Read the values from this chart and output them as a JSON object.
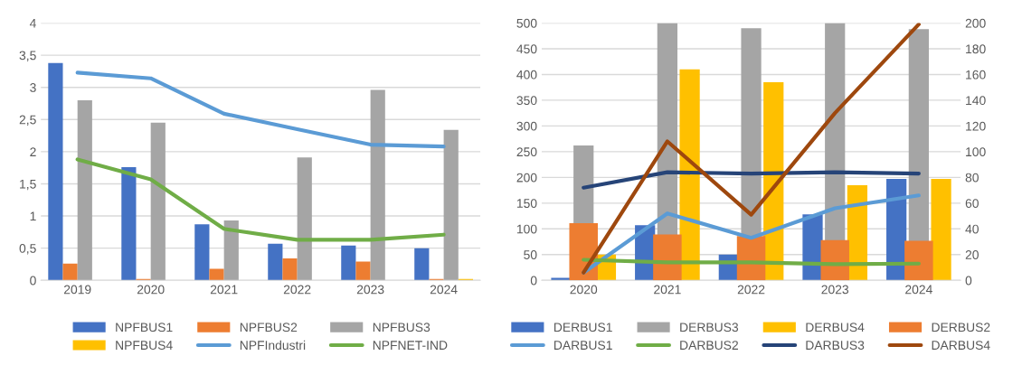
{
  "chart_data": [
    {
      "type": "bar",
      "categories": [
        "2019",
        "2020",
        "2021",
        "2022",
        "2023",
        "2024"
      ],
      "series": [
        {
          "name": "NPFBUS1",
          "color": "#4472c4",
          "values": [
            3.38,
            1.76,
            0.87,
            0.57,
            0.54,
            0.5
          ]
        },
        {
          "name": "NPFBUS2",
          "color": "#ed7d31",
          "values": [
            0.26,
            0.02,
            0.18,
            0.34,
            0.29,
            0.02
          ]
        },
        {
          "name": "NPFBUS3",
          "color": "#a5a5a5",
          "values": [
            2.8,
            2.45,
            0.93,
            1.91,
            2.96,
            2.34
          ]
        },
        {
          "name": "NPFBUS4",
          "color": "#ffc000",
          "values": [
            null,
            null,
            null,
            null,
            null,
            0.02
          ]
        },
        {
          "name": "NPFIndustri",
          "type": "line",
          "color": "#5b9bd5",
          "values": [
            3.23,
            3.14,
            2.59,
            2.35,
            2.11,
            2.08
          ]
        },
        {
          "name": "NPFNET-IND",
          "type": "line",
          "color": "#70ad47",
          "values": [
            1.88,
            1.57,
            0.8,
            0.63,
            0.63,
            0.71
          ]
        }
      ],
      "ylim": [
        0,
        4
      ],
      "yticks": [
        0,
        {
          "value": 0.5,
          "label": "0,5"
        },
        1,
        {
          "value": 1.5,
          "label": "1,5"
        },
        2,
        {
          "value": 2.5,
          "label": "2,5"
        },
        3,
        {
          "value": 3.5,
          "label": "3,5"
        },
        4
      ],
      "grid": "y",
      "legend": "bottom"
    },
    {
      "type": "bar",
      "categories": [
        "2020",
        "2021",
        "2022",
        "2023",
        "2024"
      ],
      "series": [
        {
          "name": "DERBUS1",
          "color": "#4472c4",
          "values": [
            5,
            107,
            50,
            128,
            197
          ]
        },
        {
          "name": "DERBUS3",
          "color": "#a5a5a5",
          "values": [
            262,
            500,
            490,
            500,
            488
          ]
        },
        {
          "name": "DERBUS4",
          "color": "#ffc000",
          "values": [
            50,
            410,
            385,
            185,
            197
          ]
        },
        {
          "name": "DERBUS2",
          "color": "#ed7d31",
          "values": [
            111,
            89,
            86,
            78,
            77
          ]
        },
        {
          "name": "DARBUS1",
          "type": "line",
          "axis": "y2",
          "color": "#5b9bd5",
          "values": [
            6,
            52,
            33,
            56,
            66
          ]
        },
        {
          "name": "DARBUS2",
          "type": "line",
          "axis": "y2",
          "color": "#70ad47",
          "values": [
            16,
            14,
            14,
            12.5,
            13
          ]
        },
        {
          "name": "DARBUS3",
          "type": "line",
          "axis": "y2",
          "color": "#264478",
          "values": [
            72,
            84,
            83,
            84,
            83
          ]
        },
        {
          "name": "DARBUS4",
          "type": "line",
          "axis": "y2",
          "color": "#9e480e",
          "values": [
            6,
            108,
            51,
            130,
            199
          ]
        }
      ],
      "ylim": [
        0,
        500
      ],
      "yticks": [
        0,
        50,
        100,
        150,
        200,
        250,
        300,
        350,
        400,
        450,
        500
      ],
      "y2lim": [
        0,
        200
      ],
      "y2ticks": [
        0,
        20,
        40,
        60,
        80,
        100,
        120,
        140,
        160,
        180,
        200
      ],
      "grid": "y",
      "legend": "bottom"
    }
  ]
}
